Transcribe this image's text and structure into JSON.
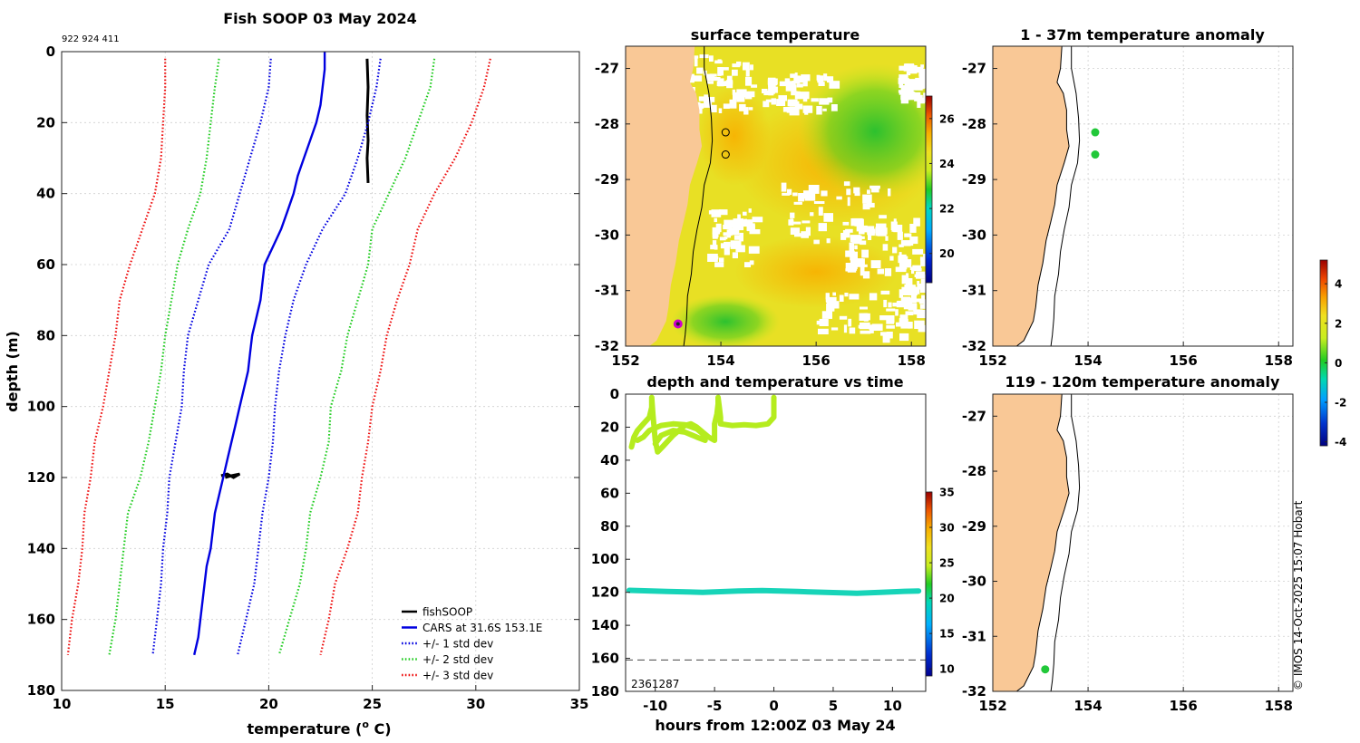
{
  "colors": {
    "land": "#f9c896",
    "cars": "#0000e0",
    "std1": "#0000e0",
    "std2": "#22cc22",
    "std3": "#ee1111",
    "fish": "#000000",
    "track": "#b5ec1e",
    "track_deep": "#17d4b8",
    "anom_dot": "#22c83a",
    "pos_marker": "#cc00cc"
  },
  "chart_data": [
    {
      "id": "profile",
      "type": "line",
      "title": "Fish SOOP 03 May 2024",
      "subtitle": "922 924 411",
      "xlabel": "temperature (",
      "xlabel_sup": "o",
      "xlabel_end": " C)",
      "ylabel": "depth (m)",
      "xlim": [
        10,
        35
      ],
      "ylim": [
        180,
        0
      ],
      "xticks": [
        10,
        15,
        20,
        25,
        30,
        35
      ],
      "yticks": [
        0,
        20,
        40,
        60,
        80,
        100,
        120,
        140,
        160,
        180
      ],
      "grid": true,
      "legend": "bottom-right",
      "series": [
        {
          "name": "fishSOOP",
          "style": "solid",
          "color": "#000000",
          "points": [
            [
              24.75,
              2
            ],
            [
              24.8,
              10
            ],
            [
              24.75,
              18
            ],
            [
              24.8,
              25
            ],
            [
              24.75,
              30
            ],
            [
              24.8,
              37
            ]
          ]
        },
        {
          "name": "fishSOOP deep",
          "legend": false,
          "style": "solid",
          "color": "#000000",
          "points": [
            [
              17.7,
              119.5
            ],
            [
              18.0,
              119.0
            ],
            [
              18.3,
              120.0
            ],
            [
              18.6,
              119.0
            ],
            [
              18.2,
              119.5
            ],
            [
              17.9,
              120
            ]
          ]
        },
        {
          "name": "CARS at 31.6S 153.1E",
          "style": "solid",
          "color": "#0000e0",
          "points": [
            [
              22.7,
              0
            ],
            [
              22.7,
              5
            ],
            [
              22.6,
              10
            ],
            [
              22.5,
              15
            ],
            [
              22.3,
              20
            ],
            [
              22.0,
              25
            ],
            [
              21.7,
              30
            ],
            [
              21.4,
              35
            ],
            [
              21.2,
              40
            ],
            [
              20.9,
              45
            ],
            [
              20.6,
              50
            ],
            [
              20.2,
              55
            ],
            [
              19.8,
              60
            ],
            [
              19.7,
              65
            ],
            [
              19.6,
              70
            ],
            [
              19.4,
              75
            ],
            [
              19.2,
              80
            ],
            [
              19.1,
              85
            ],
            [
              19.0,
              90
            ],
            [
              18.8,
              95
            ],
            [
              18.6,
              100
            ],
            [
              18.4,
              105
            ],
            [
              18.2,
              110
            ],
            [
              18.0,
              115
            ],
            [
              17.8,
              120
            ],
            [
              17.6,
              125
            ],
            [
              17.4,
              130
            ],
            [
              17.3,
              135
            ],
            [
              17.2,
              140
            ],
            [
              17.0,
              145
            ],
            [
              16.9,
              150
            ],
            [
              16.8,
              155
            ],
            [
              16.7,
              160
            ],
            [
              16.6,
              165
            ],
            [
              16.4,
              170
            ]
          ]
        },
        {
          "name": "+/- 1 std dev",
          "style": "dotted",
          "color": "#0000e0",
          "points": [
            [
              25.4,
              2
            ],
            [
              25.2,
              10
            ],
            [
              24.8,
              20
            ],
            [
              24.3,
              30
            ],
            [
              23.7,
              40
            ],
            [
              22.6,
              50
            ],
            [
              21.8,
              60
            ],
            [
              21.2,
              70
            ],
            [
              20.8,
              80
            ],
            [
              20.5,
              90
            ],
            [
              20.3,
              100
            ],
            [
              20.2,
              110
            ],
            [
              20.0,
              120
            ],
            [
              19.7,
              130
            ],
            [
              19.5,
              140
            ],
            [
              19.3,
              150
            ],
            [
              18.9,
              160
            ],
            [
              18.5,
              170
            ]
          ]
        },
        {
          "name": "+/- 1 std dev lower",
          "legend": false,
          "style": "dotted",
          "color": "#0000e0",
          "points": [
            [
              20.1,
              2
            ],
            [
              20.0,
              10
            ],
            [
              19.6,
              20
            ],
            [
              19.1,
              30
            ],
            [
              18.6,
              40
            ],
            [
              18.1,
              50
            ],
            [
              17.1,
              60
            ],
            [
              16.6,
              70
            ],
            [
              16.1,
              80
            ],
            [
              15.9,
              90
            ],
            [
              15.8,
              100
            ],
            [
              15.5,
              110
            ],
            [
              15.2,
              120
            ],
            [
              15.1,
              130
            ],
            [
              14.9,
              140
            ],
            [
              14.8,
              150
            ],
            [
              14.6,
              160
            ],
            [
              14.4,
              170
            ]
          ]
        },
        {
          "name": "+/- 2 std dev",
          "style": "dotted",
          "color": "#22cc22",
          "points": [
            [
              28.0,
              2
            ],
            [
              27.8,
              10
            ],
            [
              27.2,
              20
            ],
            [
              26.6,
              30
            ],
            [
              25.8,
              40
            ],
            [
              25.0,
              50
            ],
            [
              24.8,
              60
            ],
            [
              24.3,
              70
            ],
            [
              23.8,
              80
            ],
            [
              23.5,
              90
            ],
            [
              23.0,
              100
            ],
            [
              22.9,
              110
            ],
            [
              22.5,
              120
            ],
            [
              22.0,
              130
            ],
            [
              21.8,
              140
            ],
            [
              21.5,
              150
            ],
            [
              21.0,
              160
            ],
            [
              20.5,
              170
            ]
          ]
        },
        {
          "name": "+/- 2 std dev lower",
          "legend": false,
          "style": "dotted",
          "color": "#22cc22",
          "points": [
            [
              17.6,
              2
            ],
            [
              17.4,
              10
            ],
            [
              17.2,
              20
            ],
            [
              17.0,
              30
            ],
            [
              16.7,
              40
            ],
            [
              16.1,
              50
            ],
            [
              15.6,
              60
            ],
            [
              15.3,
              70
            ],
            [
              15.0,
              80
            ],
            [
              14.8,
              90
            ],
            [
              14.5,
              100
            ],
            [
              14.2,
              110
            ],
            [
              13.8,
              120
            ],
            [
              13.2,
              130
            ],
            [
              13.0,
              140
            ],
            [
              12.8,
              150
            ],
            [
              12.6,
              160
            ],
            [
              12.3,
              170
            ]
          ]
        },
        {
          "name": "+/- 3 std dev",
          "style": "dotted",
          "color": "#ee1111",
          "points": [
            [
              30.7,
              2
            ],
            [
              30.4,
              10
            ],
            [
              29.8,
              20
            ],
            [
              29.0,
              30
            ],
            [
              28.0,
              40
            ],
            [
              27.2,
              50
            ],
            [
              26.8,
              60
            ],
            [
              26.2,
              70
            ],
            [
              25.7,
              80
            ],
            [
              25.4,
              90
            ],
            [
              25.0,
              100
            ],
            [
              24.8,
              110
            ],
            [
              24.5,
              120
            ],
            [
              24.3,
              130
            ],
            [
              23.8,
              140
            ],
            [
              23.2,
              150
            ],
            [
              22.9,
              160
            ],
            [
              22.5,
              170
            ]
          ]
        },
        {
          "name": "+/- 3 std dev lower",
          "legend": false,
          "style": "dotted",
          "color": "#ee1111",
          "points": [
            [
              15.0,
              2
            ],
            [
              15.0,
              10
            ],
            [
              14.9,
              20
            ],
            [
              14.8,
              30
            ],
            [
              14.5,
              40
            ],
            [
              13.9,
              50
            ],
            [
              13.3,
              60
            ],
            [
              12.8,
              70
            ],
            [
              12.6,
              80
            ],
            [
              12.3,
              90
            ],
            [
              12.0,
              100
            ],
            [
              11.6,
              110
            ],
            [
              11.4,
              120
            ],
            [
              11.1,
              130
            ],
            [
              11.0,
              140
            ],
            [
              10.8,
              150
            ],
            [
              10.5,
              160
            ],
            [
              10.3,
              170
            ]
          ]
        }
      ]
    },
    {
      "id": "sst",
      "type": "heatmap",
      "title": "surface temperature",
      "xlim": [
        152,
        158.3
      ],
      "ylim": [
        -32,
        -26.6
      ],
      "xticks": [
        152,
        154,
        156,
        158
      ],
      "yticks": [
        -27,
        -28,
        -29,
        -30,
        -31,
        -32
      ],
      "colorbar": {
        "range": [
          18.7,
          27
        ],
        "ticks": [
          20,
          22,
          24,
          26
        ]
      },
      "markers": [
        {
          "lon": 154.1,
          "lat": -28.15
        },
        {
          "lon": 154.1,
          "lat": -28.55
        }
      ],
      "position": {
        "lon": 153.1,
        "lat": -31.6
      }
    },
    {
      "id": "timeseries",
      "type": "scatter",
      "title": "depth and temperature vs time",
      "xlabel": "hours from 12:00Z 03 May 24",
      "xlim": [
        -12.5,
        12.8
      ],
      "ylim": [
        180,
        0
      ],
      "xticks": [
        -10,
        -5,
        0,
        5,
        10
      ],
      "yticks": [
        0,
        20,
        40,
        60,
        80,
        100,
        120,
        140,
        160,
        180
      ],
      "bottom_depth": 161,
      "annotation": "2361287",
      "colorbar": {
        "range": [
          9,
          35
        ],
        "ticks": [
          10,
          15,
          20,
          25,
          30,
          35
        ]
      },
      "series": [
        {
          "name": "shallow",
          "color": "#b5ec1e",
          "points": [
            [
              -12,
              32
            ],
            [
              -11.8,
              26
            ],
            [
              -11.5,
              22
            ],
            [
              -11,
              18
            ],
            [
              -10.5,
              14
            ],
            [
              -10.3,
              8
            ],
            [
              -10.3,
              2
            ],
            [
              -10.2,
              12
            ],
            [
              -10.1,
              20
            ],
            [
              -10,
              28
            ],
            [
              -9.8,
              35
            ],
            [
              -9.4,
              32
            ],
            [
              -8.5,
              25
            ],
            [
              -7.5,
              19
            ],
            [
              -7,
              18
            ],
            [
              -6.5,
              20
            ],
            [
              -6,
              23
            ],
            [
              -5.5,
              26
            ],
            [
              -5,
              28
            ],
            [
              -5,
              24
            ],
            [
              -5,
              18
            ],
            [
              -4.8,
              12
            ],
            [
              -4.7,
              6
            ],
            [
              -4.7,
              2
            ],
            [
              -4.6,
              8
            ],
            [
              -4.5,
              14
            ],
            [
              -4.5,
              18
            ],
            [
              -3.5,
              19
            ],
            [
              -2.5,
              18.5
            ],
            [
              -1.5,
              19
            ],
            [
              -0.5,
              18
            ],
            [
              0,
              14
            ],
            [
              0,
              8
            ],
            [
              0,
              2
            ]
          ]
        },
        {
          "name": "shallow loop",
          "color": "#b5ec1e",
          "points": [
            [
              -11.5,
              28
            ],
            [
              -11,
              26
            ],
            [
              -10.5,
              22
            ],
            [
              -9.5,
              19
            ],
            [
              -8.5,
              18
            ],
            [
              -7.5,
              18.5
            ],
            [
              -6.5,
              21
            ],
            [
              -6,
              24
            ],
            [
              -5.8,
              28
            ],
            [
              -6.5,
              26
            ],
            [
              -7.5,
              23
            ],
            [
              -8.5,
              22
            ],
            [
              -9.5,
              25
            ],
            [
              -10,
              30
            ]
          ]
        },
        {
          "name": "deep",
          "color": "#17d4b8",
          "points": [
            [
              -12.2,
              118.8
            ],
            [
              -9,
              119.5
            ],
            [
              -6,
              120
            ],
            [
              -3,
              119.2
            ],
            [
              -1,
              119
            ],
            [
              2,
              119.5
            ],
            [
              5,
              120.2
            ],
            [
              7,
              120.6
            ],
            [
              9,
              120.1
            ],
            [
              11,
              119.4
            ],
            [
              12.2,
              119.2
            ]
          ]
        }
      ]
    },
    {
      "id": "anom_shallow",
      "type": "scatter",
      "title": "1 - 37m temperature anomaly",
      "xlim": [
        152,
        158.3
      ],
      "ylim": [
        -32,
        -26.6
      ],
      "xticks": [
        152,
        154,
        156,
        158
      ],
      "yticks": [
        -27,
        -28,
        -29,
        -30,
        -31,
        -32
      ],
      "points": [
        {
          "lon": 154.15,
          "lat": -28.15
        },
        {
          "lon": 154.15,
          "lat": -28.55
        }
      ]
    },
    {
      "id": "anom_deep",
      "type": "scatter",
      "title": "119 - 120m temperature anomaly",
      "xlim": [
        152,
        158.3
      ],
      "ylim": [
        -32,
        -26.6
      ],
      "xticks": [
        152,
        154,
        156,
        158
      ],
      "yticks": [
        -27,
        -28,
        -29,
        -30,
        -31,
        -32
      ],
      "points": [
        {
          "lon": 153.1,
          "lat": -31.6
        }
      ]
    },
    {
      "id": "anom_colorbar",
      "type": "heatmap",
      "range": [
        -4.2,
        5.2
      ],
      "ticks": [
        4,
        2,
        0,
        -2,
        -4
      ]
    }
  ],
  "footer": {
    "credit": "© IMOS 14-Oct-2025 15:07 Hobart"
  }
}
